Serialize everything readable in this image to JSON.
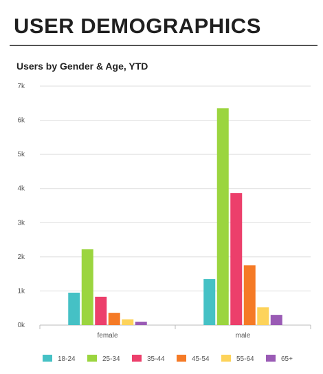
{
  "page": {
    "title": "USER DEMOGRAPHICS"
  },
  "chart_data": {
    "type": "bar",
    "title": "Users by Gender & Age, YTD",
    "xlabel": "",
    "ylabel": "",
    "categories": [
      "female",
      "male"
    ],
    "ylim": [
      0,
      7000
    ],
    "yticks": [
      0,
      1000,
      2000,
      3000,
      4000,
      5000,
      6000,
      7000
    ],
    "ytick_labels": [
      "0k",
      "1k",
      "2k",
      "3k",
      "4k",
      "5k",
      "6k",
      "7k"
    ],
    "grid": true,
    "legend_position": "bottom",
    "series": [
      {
        "name": "18-24",
        "color": "#45c1c5",
        "values": [
          950,
          1350
        ]
      },
      {
        "name": "25-34",
        "color": "#9bd53f",
        "values": [
          2220,
          6350
        ]
      },
      {
        "name": "35-44",
        "color": "#ec3f6b",
        "values": [
          830,
          3870
        ]
      },
      {
        "name": "45-54",
        "color": "#f57a26",
        "values": [
          360,
          1750
        ]
      },
      {
        "name": "55-64",
        "color": "#fdd35a",
        "values": [
          170,
          520
        ]
      },
      {
        "name": "65+",
        "color": "#9a5bb5",
        "values": [
          100,
          300
        ]
      }
    ]
  }
}
